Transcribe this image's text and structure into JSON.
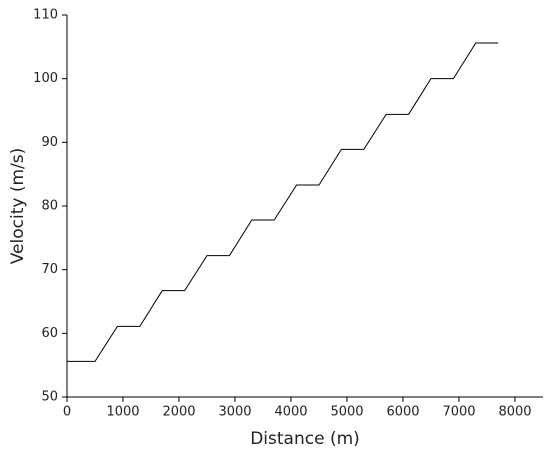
{
  "chart_data": {
    "type": "line",
    "x_label": "Distance (m)",
    "y_label": "Velocity (m/s)",
    "x": [
      0,
      500,
      900,
      1300,
      1700,
      2100,
      2500,
      2900,
      3300,
      3700,
      4100,
      4500,
      4900,
      5300,
      5700,
      6100,
      6500,
      6900,
      7300,
      7700
    ],
    "series": [
      {
        "color": "#000000",
        "values": [
          55.6,
          55.6,
          61.1,
          61.1,
          66.7,
          66.7,
          72.2,
          72.2,
          77.8,
          77.8,
          83.3,
          83.3,
          88.9,
          88.9,
          94.4,
          94.4,
          100,
          100,
          105.6,
          105.6
        ]
      }
    ],
    "xlim": [
      0,
      8500
    ],
    "xticks": [
      0,
      1000,
      2000,
      3000,
      4000,
      5000,
      6000,
      7000,
      8000
    ],
    "ylim": [
      50,
      110
    ],
    "yticks": [
      50,
      60,
      70,
      80,
      90,
      100,
      110
    ]
  }
}
